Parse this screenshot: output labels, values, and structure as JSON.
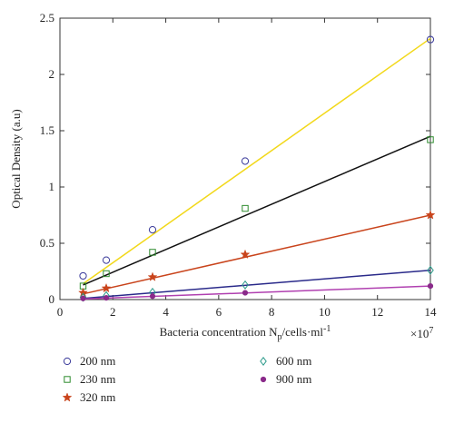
{
  "chart_data": {
    "type": "scatter",
    "ylabel": "Optical Density (a.u)",
    "xlabel_main": "Bacteria concentration N",
    "xlabel_sub": "p",
    "xlabel_rest": "/cells·ml",
    "xlabel_sup": "-1",
    "x_multiplier": "×10",
    "x_multiplier_exp": "7",
    "xlim": [
      0,
      14
    ],
    "ylim": [
      0,
      2.5
    ],
    "xticks": [
      "0",
      "2",
      "4",
      "6",
      "8",
      "10",
      "12",
      "14"
    ],
    "yticks": [
      "0",
      "0.5",
      "1",
      "1.5",
      "2",
      "2.5"
    ],
    "grid": false,
    "legend_position": "bottom",
    "series": [
      {
        "name": "200 nm",
        "color": "#3a3a9a",
        "line_color": "#f2d81a",
        "marker": "circle",
        "x": [
          0.875,
          1.75,
          3.5,
          7,
          14
        ],
        "y": [
          0.21,
          0.35,
          0.62,
          1.23,
          2.31
        ],
        "fit": [
          [
            0.875,
            0.14
          ],
          [
            14,
            2.32
          ]
        ]
      },
      {
        "name": "230 nm",
        "color": "#2e8b2e",
        "line_color": "#111111",
        "marker": "square",
        "x": [
          0.875,
          1.75,
          3.5,
          7,
          14
        ],
        "y": [
          0.12,
          0.23,
          0.42,
          0.81,
          1.42
        ],
        "fit": [
          [
            0.875,
            0.13
          ],
          [
            14,
            1.45
          ]
        ]
      },
      {
        "name": "320 nm",
        "color": "#c9441c",
        "line_color": "#c9441c",
        "marker": "star",
        "x": [
          0.875,
          1.75,
          3.5,
          7,
          14
        ],
        "y": [
          0.06,
          0.1,
          0.2,
          0.4,
          0.75
        ],
        "fit": [
          [
            0.875,
            0.05
          ],
          [
            14,
            0.75
          ]
        ]
      },
      {
        "name": "600 nm",
        "color": "#2a9a8a",
        "line_color": "#2a2a8a",
        "marker": "diamond",
        "x": [
          0.875,
          1.75,
          3.5,
          7,
          14
        ],
        "y": [
          0.02,
          0.035,
          0.065,
          0.13,
          0.26
        ],
        "fit": [
          [
            0.875,
            0.01
          ],
          [
            14,
            0.26
          ]
        ]
      },
      {
        "name": "900 nm",
        "color": "#8a2a8a",
        "line_color": "#b040b0",
        "marker": "dot",
        "x": [
          0.875,
          1.75,
          3.5,
          7,
          14
        ],
        "y": [
          0.01,
          0.015,
          0.03,
          0.06,
          0.12
        ],
        "fit": [
          [
            0.875,
            0.005
          ],
          [
            14,
            0.12
          ]
        ]
      }
    ]
  }
}
